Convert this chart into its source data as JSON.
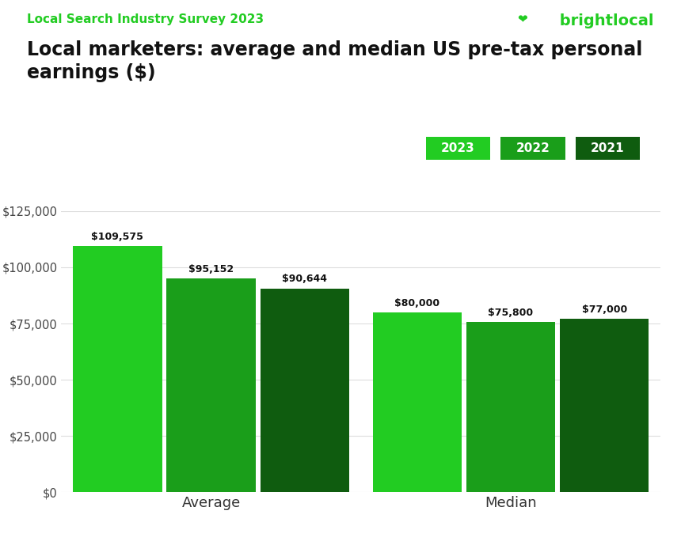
{
  "title": "Local marketers: average and median US pre-tax personal\nearnings ($)",
  "supertitle": "Local Search Industry Survey 2023",
  "brand_text": " brightlocal",
  "brand_icon": "❤️",
  "categories": [
    "Average",
    "Median"
  ],
  "years": [
    "2023",
    "2022",
    "2021"
  ],
  "values": {
    "Average": [
      109575,
      95152,
      90644
    ],
    "Median": [
      80000,
      75800,
      77000
    ]
  },
  "bar_colors": [
    "#22CC22",
    "#1a9e1a",
    "#0f5c0f"
  ],
  "ylim": [
    0,
    125000
  ],
  "yticks": [
    0,
    25000,
    50000,
    75000,
    100000,
    125000
  ],
  "ytick_labels": [
    "$0",
    "$25,000",
    "$50,000",
    "$75,000",
    "$100,000",
    "$125,000"
  ],
  "bar_width": 0.25,
  "background_color": "#ffffff",
  "grid_color": "#dddddd",
  "supertitle_color": "#22CC22",
  "title_color": "#111111",
  "bar_label_color": "#111111",
  "xlabel_color": "#333333",
  "legend_colors": [
    "#22CC22",
    "#1a9e1a",
    "#0f5c0f"
  ],
  "legend_labels": [
    "2023",
    "2022",
    "2021"
  ],
  "value_labels": {
    "Average": [
      "$109,575",
      "$95,152",
      "$90,644"
    ],
    "Median": [
      "$80,000",
      "$75,800",
      "$77,000"
    ]
  }
}
